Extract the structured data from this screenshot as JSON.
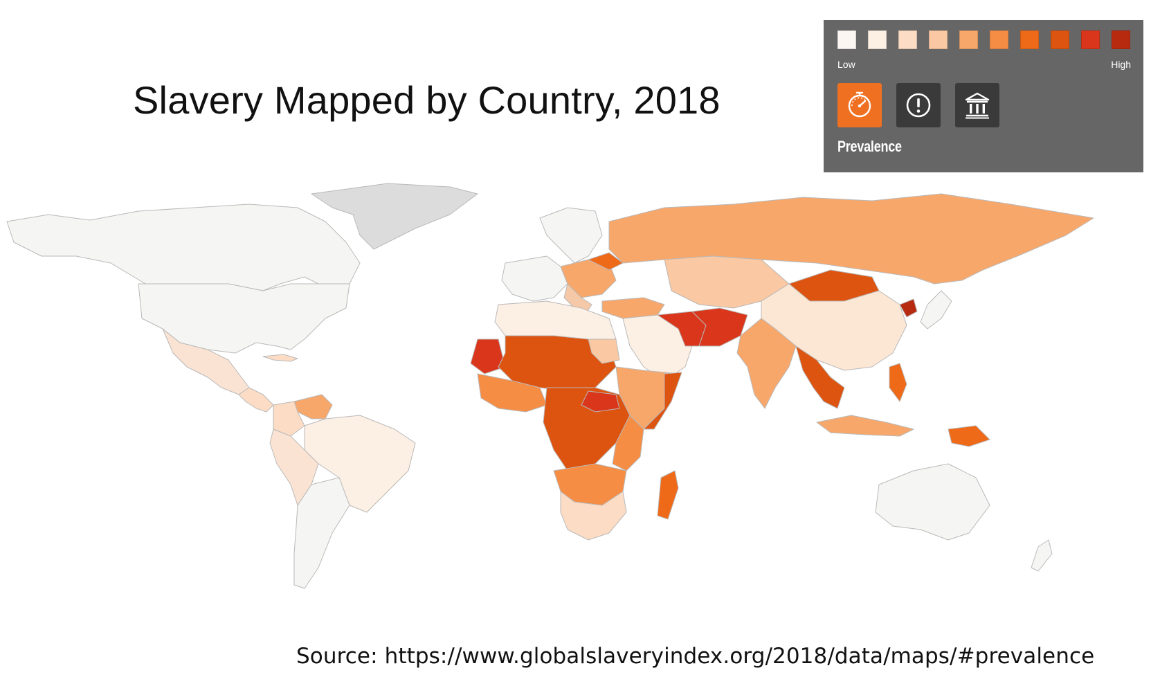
{
  "title": "Slavery Mapped by Country, 2018",
  "legend": {
    "low_label": "Low",
    "high_label": "High",
    "scale_colors": [
      "#fbf6f2",
      "#fcefe4",
      "#fcdcc4",
      "#fac8a2",
      "#f8a76b",
      "#f58d45",
      "#ef6a18",
      "#dd5310",
      "#d9361b",
      "#b82a10"
    ],
    "modes": [
      {
        "icon": "speedometer-icon",
        "active": true
      },
      {
        "icon": "alert-icon",
        "active": false
      },
      {
        "icon": "government-building-icon",
        "active": false
      }
    ],
    "active_mode_label": "Prevalence"
  },
  "colors": {
    "legend_background": "#666666",
    "active_mode": "#f07022",
    "inactive_mode": "#3a3a3a",
    "no_data": "#dcdcdc",
    "country_border": "#b9b9b9"
  },
  "source": "Source: https://www.globalslaveryindex.org/2018/data/maps/#prevalence"
}
